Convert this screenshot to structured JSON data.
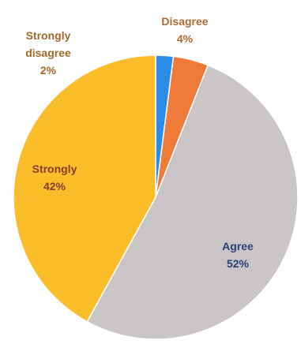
{
  "chart_data": {
    "type": "pie",
    "title": "",
    "slices": [
      {
        "label_lines": [
          "Strongly",
          "disagree",
          "2%"
        ],
        "value": 2,
        "color": "#2e8be6",
        "label_color": "#a06a2a"
      },
      {
        "label_lines": [
          "Disagree",
          "4%"
        ],
        "value": 4,
        "color": "#f07a3a",
        "label_color": "#b06a34"
      },
      {
        "label_lines": [
          "Agree",
          "52%"
        ],
        "value": 52,
        "color": "#c9c5c7",
        "label_color": "#2b3d7a"
      },
      {
        "label_lines": [
          "Strongly",
          "42%"
        ],
        "value": 42,
        "color": "#fbbd2a",
        "label_color": "#8a3a2a"
      }
    ],
    "start_angle_deg": 0,
    "direction": "clockwise"
  }
}
